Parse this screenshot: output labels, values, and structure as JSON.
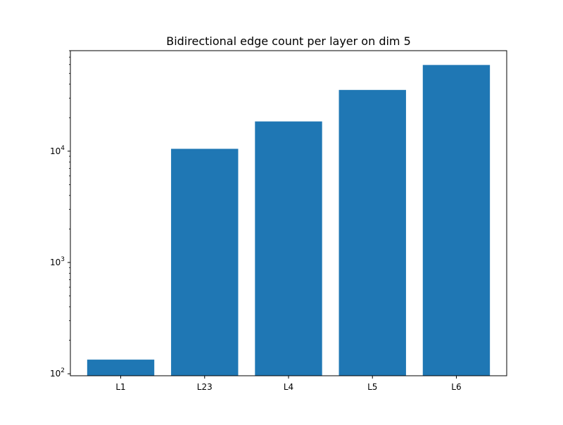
{
  "chart_data": {
    "type": "bar",
    "title": "Bidirectional edge count per layer on dim 5",
    "xlabel": "",
    "ylabel": "",
    "yscale": "log",
    "ylim": [
      96,
      80000
    ],
    "categories": [
      "L1",
      "L23",
      "L4",
      "L5",
      "L6"
    ],
    "values": [
      134,
      10500,
      18500,
      35500,
      59500
    ],
    "major_ticks": [
      100,
      1000,
      10000
    ],
    "major_tick_labels": [
      {
        "base": "10",
        "exp": "2"
      },
      {
        "base": "10",
        "exp": "3"
      },
      {
        "base": "10",
        "exp": "4"
      }
    ],
    "grid": false,
    "legend": "none",
    "bar_color": "#1f77b4"
  }
}
